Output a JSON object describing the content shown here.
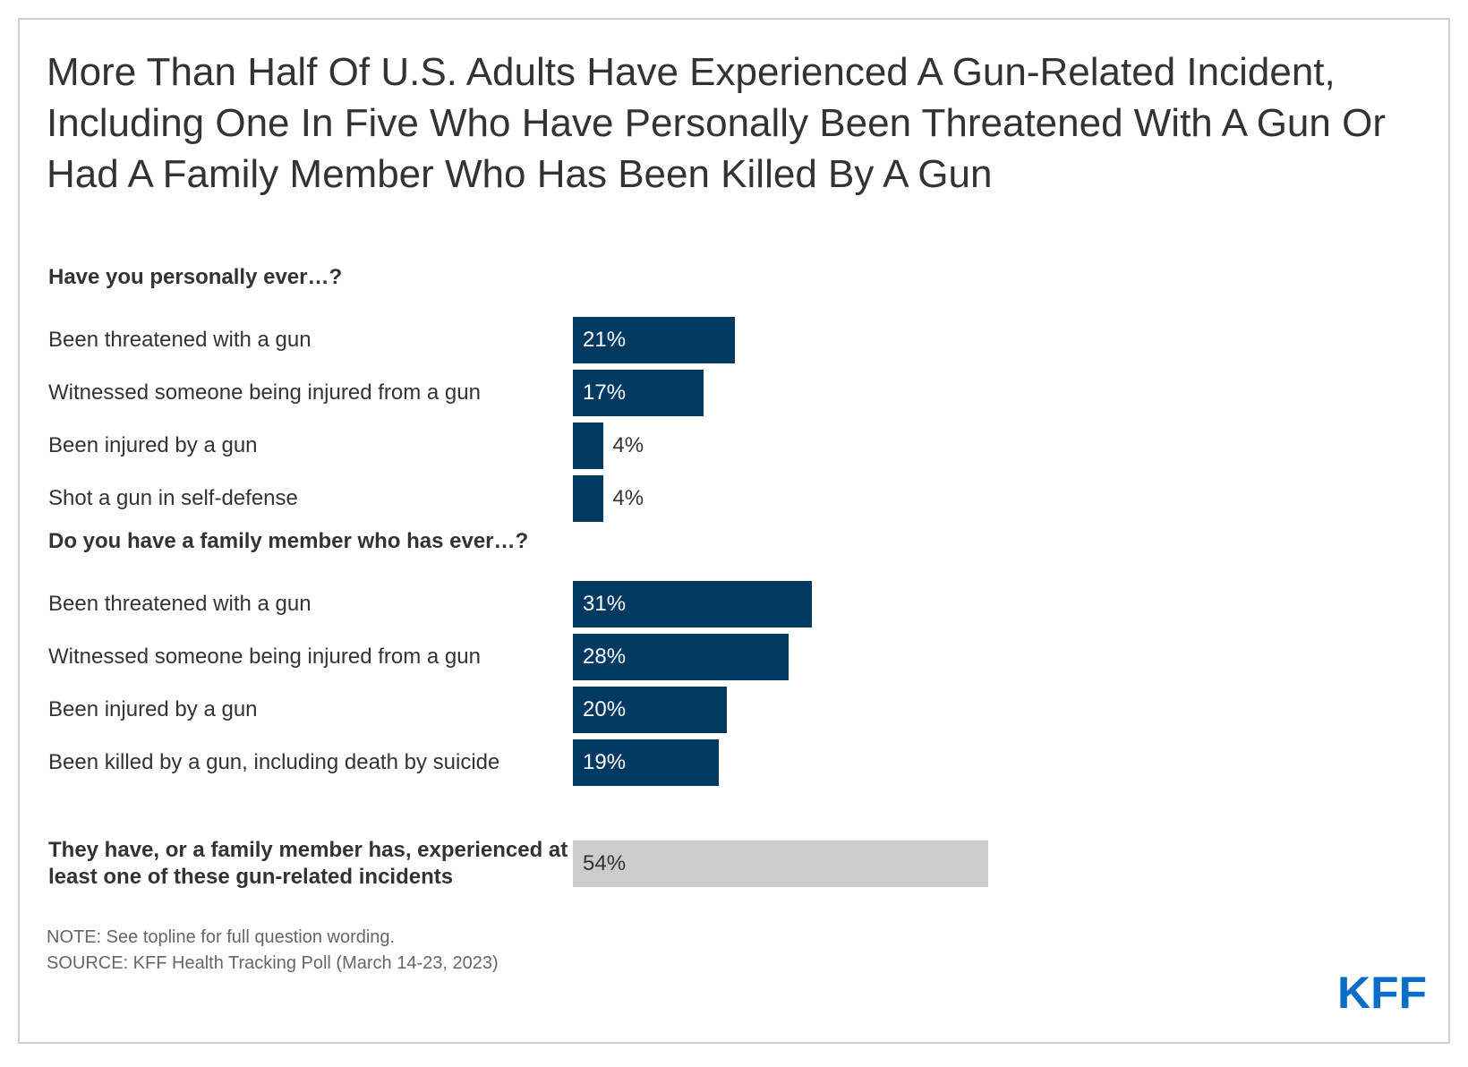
{
  "title": "More Than Half Of U.S. Adults Have Experienced A Gun-Related Incident, Including One In Five Who Have Personally Been Threatened With A Gun Or Had A Family Member Who Has Been Killed By A Gun",
  "chart_data": {
    "type": "bar",
    "orientation": "horizontal",
    "title": "More Than Half Of U.S. Adults Have Experienced A Gun-Related Incident, Including One In Five Who Have Personally Been Threatened With A Gun Or Had A Family Member Who Has Been Killed By A Gun",
    "xlim": [
      0,
      100
    ],
    "value_format": "percent",
    "colors": {
      "bar": "#003a63",
      "summary_bar": "#cccccc",
      "label_inside": "#ffffff",
      "label_outside": "#333333"
    },
    "groups": [
      {
        "header": "Have you personally ever…?",
        "items": [
          {
            "label": "Been threatened with a gun",
            "value": 21,
            "display": "21%"
          },
          {
            "label": "Witnessed someone being injured from a gun",
            "value": 17,
            "display": "17%"
          },
          {
            "label": "Been injured by a gun",
            "value": 4,
            "display": "4%"
          },
          {
            "label": "Shot a gun in self-defense",
            "value": 4,
            "display": "4%"
          }
        ]
      },
      {
        "header": "Do you have a family member who has ever…?",
        "items": [
          {
            "label": "Been threatened with a gun",
            "value": 31,
            "display": "31%"
          },
          {
            "label": "Witnessed someone being injured from a gun",
            "value": 28,
            "display": "28%"
          },
          {
            "label": "Been injured by a gun",
            "value": 20,
            "display": "20%"
          },
          {
            "label": "Been killed by a gun, including death by suicide",
            "value": 19,
            "display": "19%"
          }
        ]
      }
    ],
    "summary": {
      "label": "They have, or a family member has, experienced at least one of these gun-related incidents",
      "value": 54,
      "display": "54%"
    }
  },
  "notes": {
    "note": "NOTE: See topline for full question wording.",
    "source": "SOURCE: KFF Health Tracking Poll (March 14-23, 2023)"
  },
  "logo": {
    "text": "KFF",
    "color": "#0a6ec8"
  }
}
